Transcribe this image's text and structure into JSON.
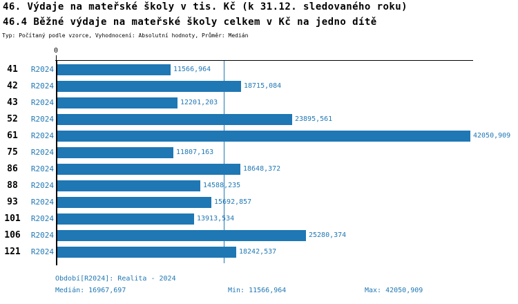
{
  "title": "46. Výdaje na mateřské školy v tis. Kč (k 31.12. sledovaného roku)",
  "subtitle": "46.4 Běžné výdaje na mateřské školy celkem v Kč na jedno dítě",
  "meta_line": "Typ: Počítaný podle vzorce, Vyhodnocení: Absolutní hodnoty, Průměr: Medián",
  "colors": {
    "bar": "#1f77b4",
    "accent_text": "#1f77b4",
    "axis": "#000000",
    "background": "#ffffff"
  },
  "chart_data": {
    "type": "bar",
    "orientation": "horizontal",
    "x_axis_zero_label": "0",
    "xmax": 42050.909,
    "median": 16967.697,
    "series_name": "R2024",
    "grid": false,
    "categories": [
      "41",
      "42",
      "43",
      "52",
      "61",
      "75",
      "86",
      "88",
      "93",
      "101",
      "106",
      "121"
    ],
    "rows": [
      {
        "code": "41",
        "period": "R2024",
        "value": 11566.964,
        "value_label": "11566,964"
      },
      {
        "code": "42",
        "period": "R2024",
        "value": 18715.084,
        "value_label": "18715,084"
      },
      {
        "code": "43",
        "period": "R2024",
        "value": 12201.203,
        "value_label": "12201,203"
      },
      {
        "code": "52",
        "period": "R2024",
        "value": 23895.561,
        "value_label": "23895,561"
      },
      {
        "code": "61",
        "period": "R2024",
        "value": 42050.909,
        "value_label": "42050,909"
      },
      {
        "code": "75",
        "period": "R2024",
        "value": 11807.163,
        "value_label": "11807,163"
      },
      {
        "code": "86",
        "period": "R2024",
        "value": 18648.372,
        "value_label": "18648,372"
      },
      {
        "code": "88",
        "period": "R2024",
        "value": 14588.235,
        "value_label": "14588,235"
      },
      {
        "code": "93",
        "period": "R2024",
        "value": 15692.857,
        "value_label": "15692,857"
      },
      {
        "code": "101",
        "period": "R2024",
        "value": 13913.534,
        "value_label": "13913,534"
      },
      {
        "code": "106",
        "period": "R2024",
        "value": 25280.374,
        "value_label": "25280,374"
      },
      {
        "code": "121",
        "period": "R2024",
        "value": 18242.537,
        "value_label": "18242,537"
      }
    ]
  },
  "footer": {
    "period": "Období[R2024]: Realita - 2024",
    "median": "Medián: 16967,697",
    "min": "Min: 11566,964",
    "max": "Max: 42050,909"
  }
}
